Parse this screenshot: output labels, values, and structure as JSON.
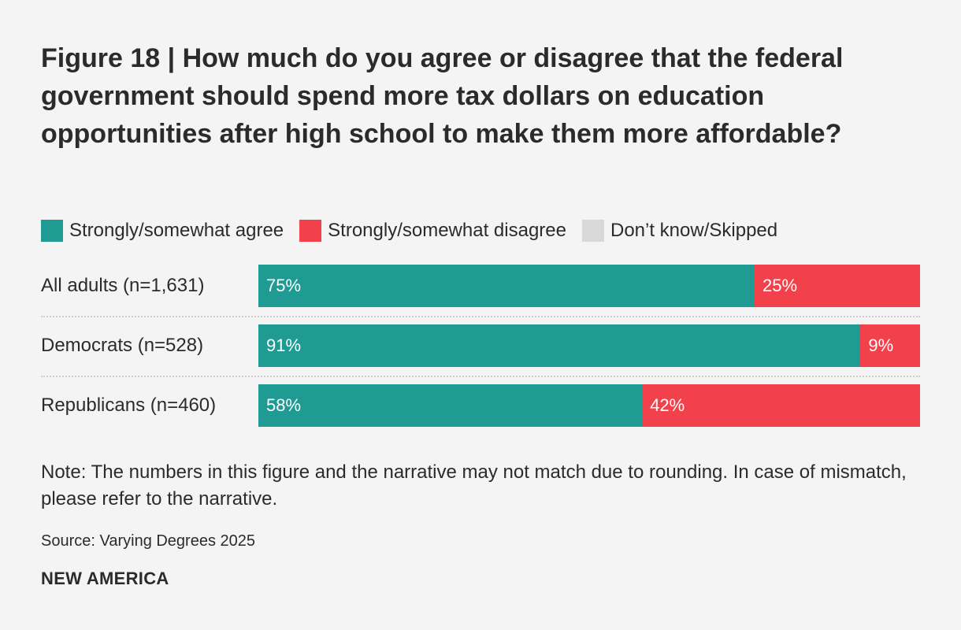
{
  "title": "Figure 18 | How much do you agree or disagree that the federal government should spend more tax dollars on education opportunities after high school to make them more affordable?",
  "legend": [
    {
      "label": "Strongly/somewhat agree",
      "color": "#1f9b93"
    },
    {
      "label": "Strongly/somewhat disagree",
      "color": "#f2414b"
    },
    {
      "label": "Don’t know/Skipped",
      "color": "#d8d8d8"
    }
  ],
  "chart_data": {
    "type": "bar",
    "orientation": "horizontal",
    "stacked": true,
    "categories": [
      "All adults (n=1,631)",
      "Democrats (n=528)",
      "Republicans (n=460)"
    ],
    "series": [
      {
        "name": "Strongly/somewhat agree",
        "values": [
          75,
          91,
          58
        ],
        "labels": [
          "75%",
          "91%",
          "58%"
        ],
        "color": "#1f9b93"
      },
      {
        "name": "Strongly/somewhat disagree",
        "values": [
          25,
          9,
          42
        ],
        "labels": [
          "25%",
          "9%",
          "42%"
        ],
        "color": "#f2414b"
      },
      {
        "name": "Don’t know/Skipped",
        "values": [
          0,
          0,
          0
        ],
        "labels": [
          "",
          "",
          ""
        ],
        "color": "#d8d8d8"
      }
    ],
    "xlim": [
      0,
      100
    ],
    "grid": false,
    "legend_position": "top-left"
  },
  "note": "Note: The numbers in this figure and the narrative may not match due to rounding. In case of mismatch, please refer to the narrative.",
  "source": "Source: Varying Degrees 2025",
  "brand": "NEW AMERICA"
}
